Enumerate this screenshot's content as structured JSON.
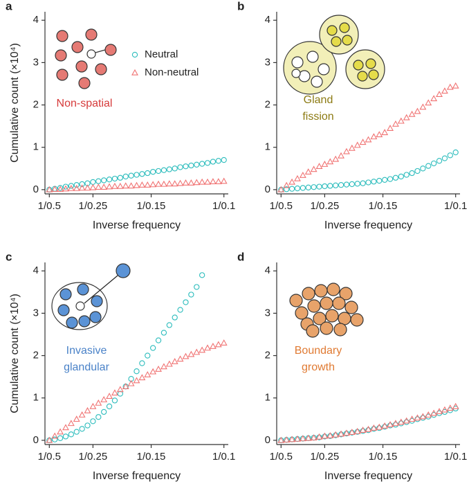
{
  "chart_data": [
    {
      "type": "scatter",
      "panel": "a",
      "annotation": [
        "Non-spatial"
      ],
      "annotation_color": "#d63a3a",
      "ylabel": "Cumulative count (×10⁴)",
      "xlabel": "Inverse frequency",
      "legend": "upper right",
      "xlim": [
        1.8,
        10.2
      ],
      "ylim": [
        -0.1,
        4.2
      ],
      "yticks": [
        0,
        1,
        2,
        3,
        4
      ],
      "xticks": [
        {
          "value": 2,
          "label": "1/0.5"
        },
        {
          "value": 4,
          "label": "1/0.25"
        },
        {
          "value": 6.667,
          "label": "1/0.15"
        },
        {
          "value": 10,
          "label": "1/0.1"
        }
      ],
      "x": [
        2,
        2.25,
        2.5,
        2.75,
        3,
        3.25,
        3.5,
        3.75,
        4,
        4.25,
        4.5,
        4.75,
        5,
        5.25,
        5.5,
        5.75,
        6,
        6.25,
        6.5,
        6.75,
        7,
        7.25,
        7.5,
        7.75,
        8,
        8.25,
        8.5,
        8.75,
        9,
        9.25,
        9.5,
        9.75,
        10
      ],
      "series": [
        {
          "name": "Neutral",
          "marker": "circle",
          "color": "#2bbcbc",
          "values": [
            0,
            0.02,
            0.04,
            0.07,
            0.09,
            0.11,
            0.13,
            0.15,
            0.18,
            0.2,
            0.22,
            0.24,
            0.26,
            0.28,
            0.31,
            0.33,
            0.35,
            0.37,
            0.39,
            0.42,
            0.44,
            0.46,
            0.48,
            0.5,
            0.53,
            0.55,
            0.57,
            0.59,
            0.61,
            0.63,
            0.66,
            0.68,
            0.7
          ]
        },
        {
          "name": "Non-neutral",
          "marker": "triangle",
          "color": "#f07272",
          "values": [
            0,
            0.01,
            0.01,
            0.02,
            0.03,
            0.03,
            0.04,
            0.04,
            0.05,
            0.06,
            0.06,
            0.07,
            0.08,
            0.08,
            0.09,
            0.09,
            0.1,
            0.11,
            0.11,
            0.12,
            0.13,
            0.13,
            0.14,
            0.14,
            0.15,
            0.16,
            0.16,
            0.17,
            0.18,
            0.18,
            0.19,
            0.19,
            0.2
          ]
        }
      ]
    },
    {
      "type": "scatter",
      "panel": "b",
      "annotation": [
        "Gland",
        "fission"
      ],
      "annotation_color": "#8c7a12",
      "xlabel": "Inverse frequency",
      "xlim": [
        1.8,
        10.2
      ],
      "ylim": [
        -0.1,
        4.2
      ],
      "yticks": [
        0,
        1,
        2,
        3,
        4
      ],
      "xticks": [
        {
          "value": 2,
          "label": "1/0.5"
        },
        {
          "value": 4,
          "label": "1/0.25"
        },
        {
          "value": 6.667,
          "label": "1/0.15"
        },
        {
          "value": 10,
          "label": "1/0.1"
        }
      ],
      "x": [
        2,
        2.25,
        2.5,
        2.75,
        3,
        3.25,
        3.5,
        3.75,
        4,
        4.25,
        4.5,
        4.75,
        5,
        5.25,
        5.5,
        5.75,
        6,
        6.25,
        6.5,
        6.75,
        7,
        7.25,
        7.5,
        7.75,
        8,
        8.25,
        8.5,
        8.75,
        9,
        9.25,
        9.5,
        9.75,
        10
      ],
      "series": [
        {
          "marker": "circle",
          "color": "#2bbcbc",
          "values": [
            0,
            0.01,
            0.02,
            0.03,
            0.04,
            0.05,
            0.06,
            0.07,
            0.08,
            0.09,
            0.1,
            0.11,
            0.12,
            0.13,
            0.14,
            0.15,
            0.17,
            0.19,
            0.21,
            0.23,
            0.25,
            0.28,
            0.31,
            0.35,
            0.39,
            0.44,
            0.5,
            0.56,
            0.62,
            0.68,
            0.74,
            0.81,
            0.88
          ]
        },
        {
          "marker": "triangle",
          "color": "#f07272",
          "values": [
            0,
            0.1,
            0.18,
            0.26,
            0.34,
            0.42,
            0.48,
            0.55,
            0.6,
            0.66,
            0.72,
            0.8,
            0.9,
            0.98,
            1.05,
            1.12,
            1.18,
            1.25,
            1.3,
            1.35,
            1.45,
            1.55,
            1.62,
            1.7,
            1.78,
            1.85,
            1.95,
            2.05,
            2.15,
            2.25,
            2.33,
            2.42,
            2.45
          ]
        }
      ]
    },
    {
      "type": "scatter",
      "panel": "c",
      "annotation": [
        "Invasive",
        "glandular"
      ],
      "annotation_color": "#4a82c8",
      "ylabel": "Cumulative count (×10⁴)",
      "xlabel": "Inverse frequency",
      "xlim": [
        1.8,
        10.2
      ],
      "ylim": [
        -0.1,
        4.2
      ],
      "yticks": [
        0,
        1,
        2,
        3,
        4
      ],
      "xticks": [
        {
          "value": 2,
          "label": "1/0.5"
        },
        {
          "value": 4,
          "label": "1/0.25"
        },
        {
          "value": 6.667,
          "label": "1/0.15"
        },
        {
          "value": 10,
          "label": "1/0.1"
        }
      ],
      "x": [
        2,
        2.25,
        2.5,
        2.75,
        3,
        3.25,
        3.5,
        3.75,
        4,
        4.25,
        4.5,
        4.75,
        5,
        5.25,
        5.5,
        5.75,
        6,
        6.25,
        6.5,
        6.75,
        7,
        7.25,
        7.5,
        7.75,
        8,
        8.25,
        8.5,
        8.75,
        9,
        9.25,
        9.5,
        9.75,
        10
      ],
      "series": [
        {
          "marker": "circle",
          "color": "#2bbcbc",
          "values": [
            0,
            0.02,
            0.05,
            0.09,
            0.14,
            0.2,
            0.27,
            0.35,
            0.45,
            0.55,
            0.67,
            0.8,
            0.94,
            1.1,
            1.27,
            1.45,
            1.63,
            1.82,
            2.0,
            2.18,
            2.36,
            2.54,
            2.72,
            2.9,
            3.08,
            3.26,
            3.44,
            3.62,
            3.9,
            null,
            null,
            null,
            null
          ]
        },
        {
          "marker": "triangle",
          "color": "#f07272",
          "values": [
            0,
            0.1,
            0.2,
            0.3,
            0.4,
            0.5,
            0.6,
            0.7,
            0.8,
            0.88,
            0.96,
            1.04,
            1.12,
            1.2,
            1.27,
            1.34,
            1.41,
            1.48,
            1.55,
            1.62,
            1.68,
            1.74,
            1.8,
            1.86,
            1.92,
            1.98,
            2.03,
            2.08,
            2.13,
            2.18,
            2.22,
            2.26,
            2.3
          ]
        }
      ]
    },
    {
      "type": "scatter",
      "panel": "d",
      "annotation": [
        "Boundary",
        "growth"
      ],
      "annotation_color": "#e07a32",
      "xlabel": "Inverse frequency",
      "xlim": [
        1.8,
        10.2
      ],
      "ylim": [
        -0.1,
        4.2
      ],
      "yticks": [
        0,
        1,
        2,
        3,
        4
      ],
      "xticks": [
        {
          "value": 2,
          "label": "1/0.5"
        },
        {
          "value": 4,
          "label": "1/0.25"
        },
        {
          "value": 6.667,
          "label": "1/0.15"
        },
        {
          "value": 10,
          "label": "1/0.1"
        }
      ],
      "x": [
        2,
        2.25,
        2.5,
        2.75,
        3,
        3.25,
        3.5,
        3.75,
        4,
        4.25,
        4.5,
        4.75,
        5,
        5.25,
        5.5,
        5.75,
        6,
        6.25,
        6.5,
        6.75,
        7,
        7.25,
        7.5,
        7.75,
        8,
        8.25,
        8.5,
        8.75,
        9,
        9.25,
        9.5,
        9.75,
        10
      ],
      "series": [
        {
          "marker": "circle",
          "color": "#2bbcbc",
          "values": [
            0,
            0.01,
            0.02,
            0.03,
            0.04,
            0.05,
            0.06,
            0.07,
            0.09,
            0.1,
            0.12,
            0.14,
            0.16,
            0.18,
            0.2,
            0.22,
            0.24,
            0.27,
            0.29,
            0.32,
            0.35,
            0.37,
            0.4,
            0.43,
            0.46,
            0.5,
            0.53,
            0.56,
            0.6,
            0.64,
            0.67,
            0.71,
            0.75
          ]
        },
        {
          "marker": "triangle",
          "color": "#f07272",
          "values": [
            0,
            0.01,
            0.02,
            0.03,
            0.04,
            0.05,
            0.06,
            0.08,
            0.1,
            0.11,
            0.13,
            0.15,
            0.17,
            0.19,
            0.21,
            0.24,
            0.26,
            0.29,
            0.31,
            0.34,
            0.37,
            0.4,
            0.43,
            0.46,
            0.5,
            0.53,
            0.56,
            0.6,
            0.64,
            0.68,
            0.72,
            0.76,
            0.8
          ]
        }
      ]
    }
  ]
}
